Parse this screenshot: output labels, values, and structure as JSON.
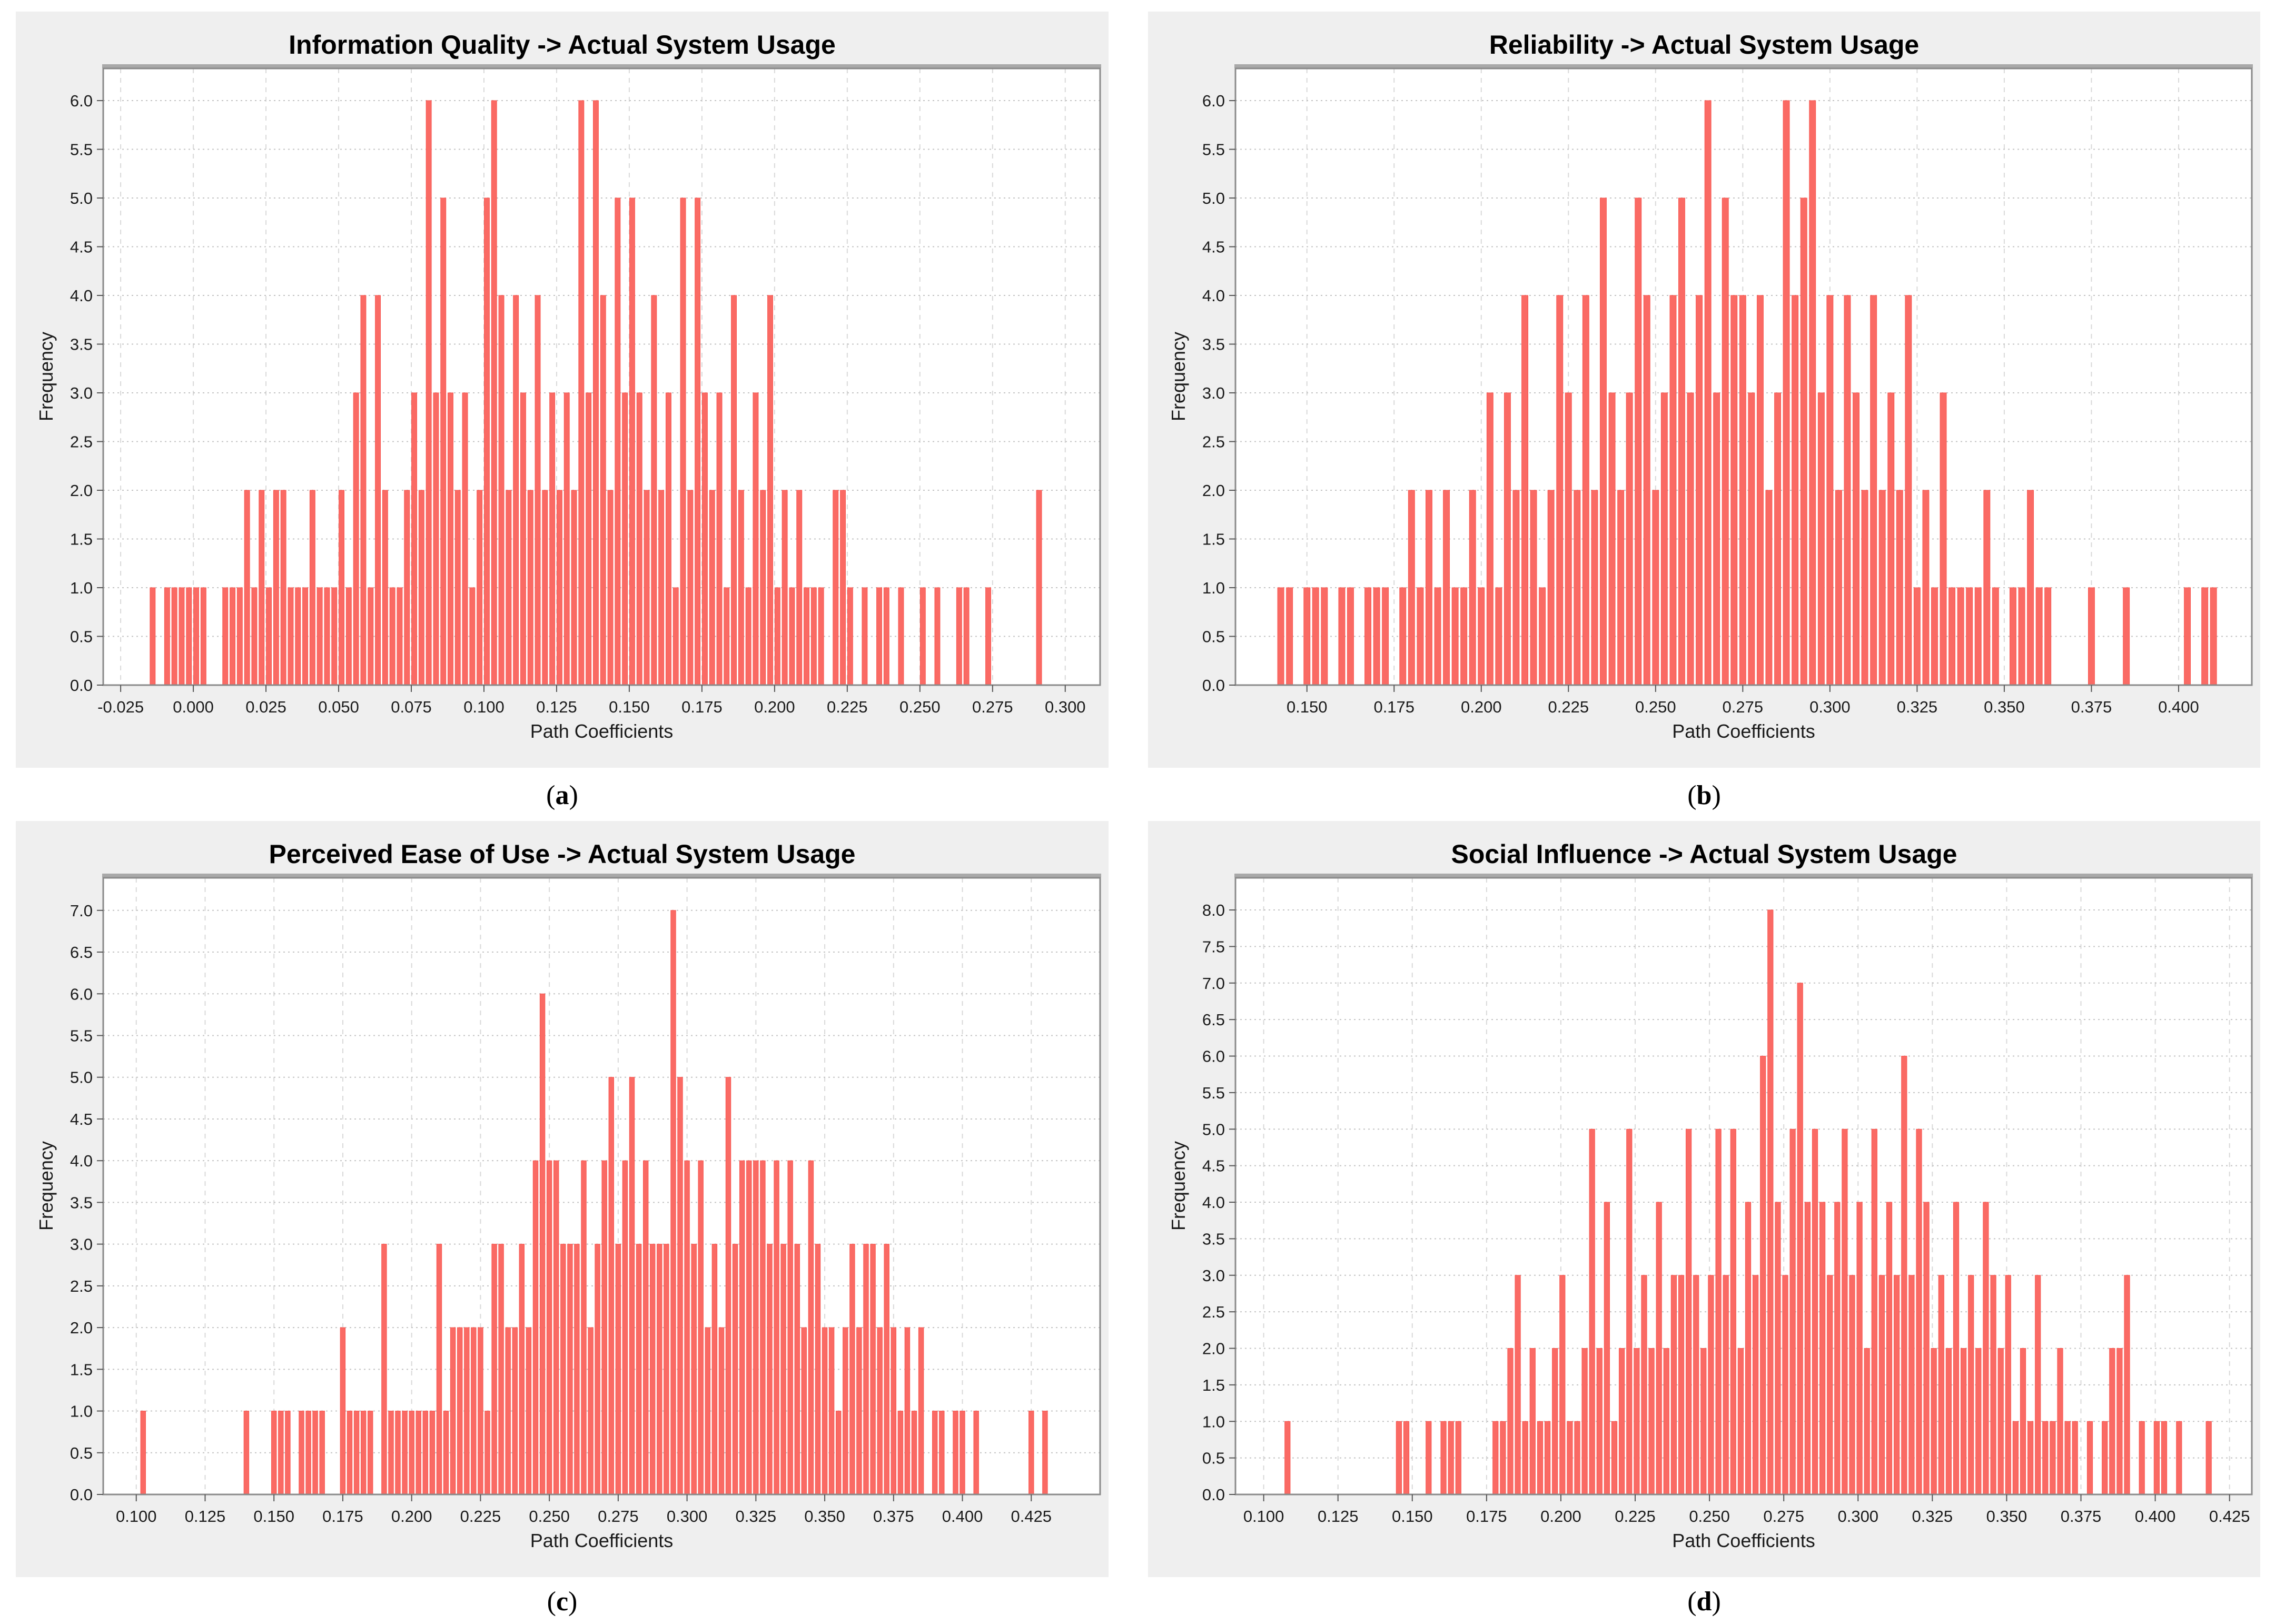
{
  "styles": {
    "page_bg": "#ffffff",
    "panel_bg": "#efefef",
    "plot_bg": "#ffffff",
    "frame_color": "#8a8a8a",
    "frame_top_band": "#a9a9a9",
    "grid_h_color": "#c3c3c3",
    "grid_v_color": "#d9d9d9",
    "tick_color": "#555555",
    "tick_label_color": "#1a1a1a",
    "bar_fill": "#fa6a64",
    "bar_edge": "#f8554f",
    "title_color": "#000000"
  },
  "captions": {
    "open": "(",
    "close": ")"
  },
  "chart_data": [
    {
      "type": "bar",
      "panel": "a",
      "caption_letter": "a",
      "title": "Information Quality -> Actual System Usage",
      "xlabel": "Path Coefficients",
      "ylabel": "Frequency",
      "grid": true,
      "x_tick_labels": [
        "-0.025",
        "0.000",
        "0.025",
        "0.050",
        "0.075",
        "0.100",
        "0.125",
        "0.150",
        "0.175",
        "0.200",
        "0.225",
        "0.250",
        "0.275",
        "0.300"
      ],
      "y_tick_max": 6,
      "y_tick_step": 0.5,
      "xlim": [
        -0.031,
        0.312
      ],
      "ylim": [
        0,
        6.33
      ],
      "bars": {
        "x0": -0.014,
        "bin_width": 0.0025,
        "heights": [
          1,
          0,
          1,
          1,
          1,
          1,
          1,
          1,
          0,
          0,
          1,
          1,
          1,
          2,
          1,
          2,
          1,
          2,
          2,
          1,
          1,
          1,
          2,
          1,
          1,
          1,
          2,
          1,
          3,
          4,
          1,
          4,
          2,
          1,
          1,
          2,
          3,
          2,
          6,
          3,
          5,
          3,
          2,
          3,
          1,
          2,
          5,
          6,
          4,
          2,
          4,
          3,
          2,
          4,
          2,
          3,
          2,
          3,
          2,
          6,
          3,
          6,
          4,
          2,
          5,
          3,
          5,
          3,
          2,
          4,
          2,
          3,
          1,
          5,
          2,
          5,
          3,
          2,
          3,
          1,
          4,
          2,
          1,
          3,
          2,
          4,
          1,
          2,
          1,
          2,
          1,
          1,
          1,
          0,
          2,
          2,
          1,
          0,
          1,
          0,
          1,
          1,
          0,
          1,
          0,
          0,
          1,
          0,
          1,
          0,
          0,
          1,
          1,
          0,
          0,
          1,
          0,
          0,
          0,
          0,
          0,
          0,
          2
        ]
      }
    },
    {
      "type": "bar",
      "panel": "b",
      "caption_letter": "b",
      "title": "Reliability -> Actual System Usage",
      "xlabel": "Path Coefficients",
      "ylabel": "Frequency",
      "grid": true,
      "x_tick_labels": [
        "0.150",
        "0.175",
        "0.200",
        "0.225",
        "0.250",
        "0.275",
        "0.300",
        "0.325",
        "0.350",
        "0.375",
        "0.400"
      ],
      "y_tick_max": 6,
      "y_tick_step": 0.5,
      "xlim": [
        0.1295,
        0.421
      ],
      "ylim": [
        0,
        6.33
      ],
      "bars": {
        "x0": 0.1425,
        "bin_width": 0.0025,
        "heights": [
          1,
          1,
          0,
          1,
          1,
          1,
          0,
          1,
          1,
          0,
          1,
          1,
          1,
          0,
          1,
          2,
          1,
          2,
          1,
          2,
          1,
          1,
          2,
          1,
          3,
          1,
          3,
          2,
          4,
          2,
          1,
          2,
          4,
          3,
          2,
          4,
          2,
          5,
          3,
          2,
          3,
          5,
          4,
          2,
          3,
          4,
          5,
          3,
          4,
          6,
          3,
          5,
          4,
          4,
          3,
          4,
          2,
          3,
          6,
          4,
          5,
          6,
          3,
          4,
          2,
          4,
          3,
          2,
          4,
          2,
          3,
          2,
          4,
          1,
          2,
          1,
          3,
          1,
          1,
          1,
          1,
          2,
          1,
          0,
          1,
          1,
          2,
          1,
          1,
          0,
          0,
          0,
          0,
          1,
          0,
          0,
          0,
          1,
          0,
          0,
          0,
          0,
          0,
          0,
          1,
          0,
          1,
          1
        ]
      }
    },
    {
      "type": "bar",
      "panel": "c",
      "caption_letter": "c",
      "title": "Perceived Ease of Use -> Actual System Usage",
      "xlabel": "Path Coefficients",
      "ylabel": "Frequency",
      "grid": true,
      "x_tick_labels": [
        "0.100",
        "0.125",
        "0.150",
        "0.175",
        "0.200",
        "0.225",
        "0.250",
        "0.275",
        "0.300",
        "0.325",
        "0.350",
        "0.375",
        "0.400",
        "0.425"
      ],
      "y_tick_max": 7,
      "y_tick_step": 0.5,
      "xlim": [
        0.088,
        0.45
      ],
      "ylim": [
        0,
        7.39
      ],
      "bars": {
        "x0": 0.1025,
        "bin_width": 0.0025,
        "heights": [
          1,
          0,
          0,
          0,
          0,
          0,
          0,
          0,
          0,
          0,
          0,
          0,
          0,
          0,
          0,
          1,
          0,
          0,
          0,
          1,
          1,
          1,
          0,
          1,
          1,
          1,
          1,
          0,
          0,
          2,
          1,
          1,
          1,
          1,
          0,
          3,
          1,
          1,
          1,
          1,
          1,
          1,
          1,
          3,
          1,
          2,
          2,
          2,
          2,
          2,
          1,
          3,
          3,
          2,
          2,
          3,
          2,
          4,
          6,
          4,
          4,
          3,
          3,
          3,
          4,
          2,
          3,
          4,
          5,
          3,
          4,
          5,
          3,
          4,
          3,
          3,
          3,
          7,
          5,
          4,
          3,
          4,
          2,
          3,
          2,
          5,
          3,
          4,
          4,
          4,
          4,
          3,
          4,
          3,
          4,
          3,
          2,
          4,
          3,
          2,
          2,
          1,
          2,
          3,
          2,
          3,
          3,
          2,
          3,
          2,
          1,
          2,
          1,
          2,
          0,
          1,
          1,
          0,
          1,
          1,
          0,
          1,
          0,
          0,
          0,
          0,
          0,
          0,
          0,
          1,
          0,
          1,
          0
        ]
      }
    },
    {
      "type": "bar",
      "panel": "d",
      "caption_letter": "d",
      "title": "Social Influence -> Actual System Usage",
      "xlabel": "Path Coefficients",
      "ylabel": "Frequency",
      "grid": true,
      "x_tick_labels": [
        "0.100",
        "0.125",
        "0.150",
        "0.175",
        "0.200",
        "0.225",
        "0.250",
        "0.275",
        "0.300",
        "0.325",
        "0.350",
        "0.375",
        "0.400",
        "0.425"
      ],
      "y_tick_max": 8,
      "y_tick_step": 0.5,
      "xlim": [
        0.0905,
        0.4325
      ],
      "ylim": [
        0,
        8.44
      ],
      "bars": {
        "x0": 0.108,
        "bin_width": 0.0025,
        "heights": [
          1,
          0,
          0,
          0,
          0,
          0,
          0,
          0,
          0,
          0,
          0,
          0,
          0,
          0,
          0,
          1,
          1,
          0,
          0,
          1,
          0,
          1,
          1,
          1,
          0,
          0,
          0,
          0,
          1,
          1,
          2,
          3,
          1,
          2,
          1,
          1,
          2,
          3,
          1,
          1,
          2,
          5,
          2,
          4,
          1,
          2,
          5,
          2,
          3,
          2,
          4,
          2,
          3,
          3,
          5,
          3,
          2,
          3,
          5,
          3,
          5,
          2,
          4,
          3,
          6,
          8,
          4,
          3,
          5,
          7,
          4,
          5,
          4,
          3,
          4,
          5,
          3,
          4,
          2,
          5,
          3,
          4,
          3,
          6,
          3,
          5,
          4,
          2,
          3,
          2,
          4,
          2,
          3,
          2,
          4,
          3,
          2,
          3,
          1,
          2,
          1,
          3,
          1,
          1,
          2,
          1,
          1,
          0,
          1,
          0,
          1,
          2,
          2,
          3,
          0,
          1,
          0,
          1,
          1,
          0,
          1,
          0,
          0,
          0,
          1
        ]
      }
    }
  ]
}
